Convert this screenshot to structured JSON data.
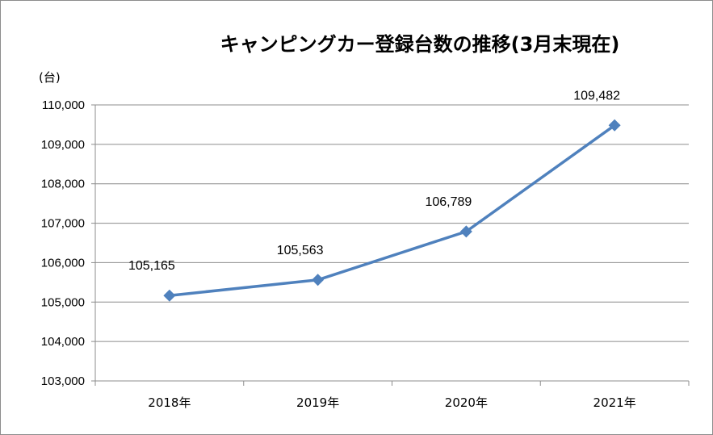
{
  "chart_data": {
    "type": "line",
    "title": "キャンピングカー登録台数の推移(3月末現在)",
    "unit_label": "(台)",
    "categories": [
      "2018年",
      "2019年",
      "2020年",
      "2021年"
    ],
    "series": [
      {
        "values": [
          105165,
          105563,
          106789,
          109482
        ],
        "color": "#4f81bd"
      }
    ],
    "data_labels": [
      "105,165",
      "105,563",
      "106,789",
      "109,482"
    ],
    "ylim": [
      103000,
      110000
    ],
    "ytick_step": 1000,
    "ytick_labels": [
      "103,000",
      "104,000",
      "105,000",
      "106,000",
      "107,000",
      "108,000",
      "109,000",
      "110,000"
    ],
    "grid": true,
    "legend": false,
    "marker": "diamond"
  }
}
